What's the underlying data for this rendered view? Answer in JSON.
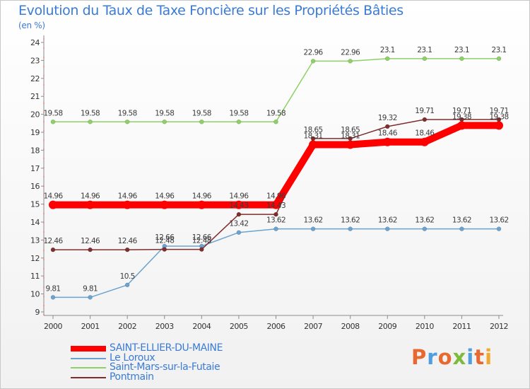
{
  "header": {
    "title": "Evolution du Taux de Taxe Foncière sur les Propriétés Bâties",
    "unit": "(en %)"
  },
  "brand": {
    "text": "Proxiti",
    "letter_colors": [
      "#e8692f",
      "#4e9ee0",
      "#e8692f",
      "#7cbb3b",
      "#4e9ee0",
      "#e8692f",
      "#f0a830"
    ]
  },
  "chart_data": {
    "type": "line",
    "title": "Evolution du Taux de Taxe Foncière sur les Propriétés Bâties",
    "ylabel": "(en %)",
    "xlabel": "",
    "x": [
      "2000",
      "2001",
      "2002",
      "2003",
      "2004",
      "2005",
      "2006",
      "2007",
      "2008",
      "2009",
      "2010",
      "2011",
      "2012"
    ],
    "ylim": [
      9,
      24
    ],
    "yticks": [
      9,
      10,
      11,
      12,
      13,
      14,
      15,
      16,
      17,
      18,
      19,
      20,
      21,
      22,
      23,
      24
    ],
    "grid": false,
    "legend_position": "bottom-left",
    "series": [
      {
        "name": "SAINT-ELLIER-DU-MAINE",
        "color": "#ff0000",
        "values": [
          14.96,
          14.96,
          14.96,
          14.96,
          14.96,
          14.96,
          14.96,
          18.31,
          18.31,
          18.46,
          18.46,
          19.38,
          19.38
        ],
        "labels": [
          "14.96",
          "14.96",
          "14.96",
          "14.96",
          "14.96",
          "14.96",
          "14.96",
          "18.31",
          "18.31",
          "18.46",
          "18.46",
          "19.38",
          "19.38"
        ]
      },
      {
        "name": "Le Loroux",
        "color": "#6aa3cf",
        "values": [
          9.81,
          9.81,
          10.5,
          12.66,
          12.66,
          13.42,
          13.62,
          13.62,
          13.62,
          13.62,
          13.62,
          13.62,
          13.62
        ],
        "labels": [
          "9.81",
          "9.81",
          "10.5",
          "12.66",
          "12.66",
          "13.42",
          "13.62",
          "13.62",
          "13.62",
          "13.62",
          "13.62",
          "13.62",
          "13.62"
        ]
      },
      {
        "name": "Saint-Mars-sur-la-Futaie",
        "color": "#8ed066",
        "values": [
          19.58,
          19.58,
          19.58,
          19.58,
          19.58,
          19.58,
          19.58,
          22.96,
          22.96,
          23.1,
          23.1,
          23.1,
          23.1
        ],
        "labels": [
          "19.58",
          "19.58",
          "19.58",
          "19.58",
          "19.58",
          "19.58",
          "19.58",
          "22.96",
          "22.96",
          "23.1",
          "23.1",
          "23.1",
          "23.1"
        ]
      },
      {
        "name": "Pontmain",
        "color": "#7f2d2d",
        "values": [
          12.46,
          12.46,
          12.46,
          12.48,
          12.48,
          14.43,
          14.43,
          18.65,
          18.65,
          19.32,
          19.71,
          19.71,
          19.71
        ],
        "labels": [
          "12.46",
          "12.46",
          "12.46",
          "12.48",
          "12.48",
          "14.43",
          "14.43",
          "18.65",
          "18.65",
          "19.32",
          "19.71",
          "19.71",
          "19.71"
        ]
      }
    ]
  }
}
